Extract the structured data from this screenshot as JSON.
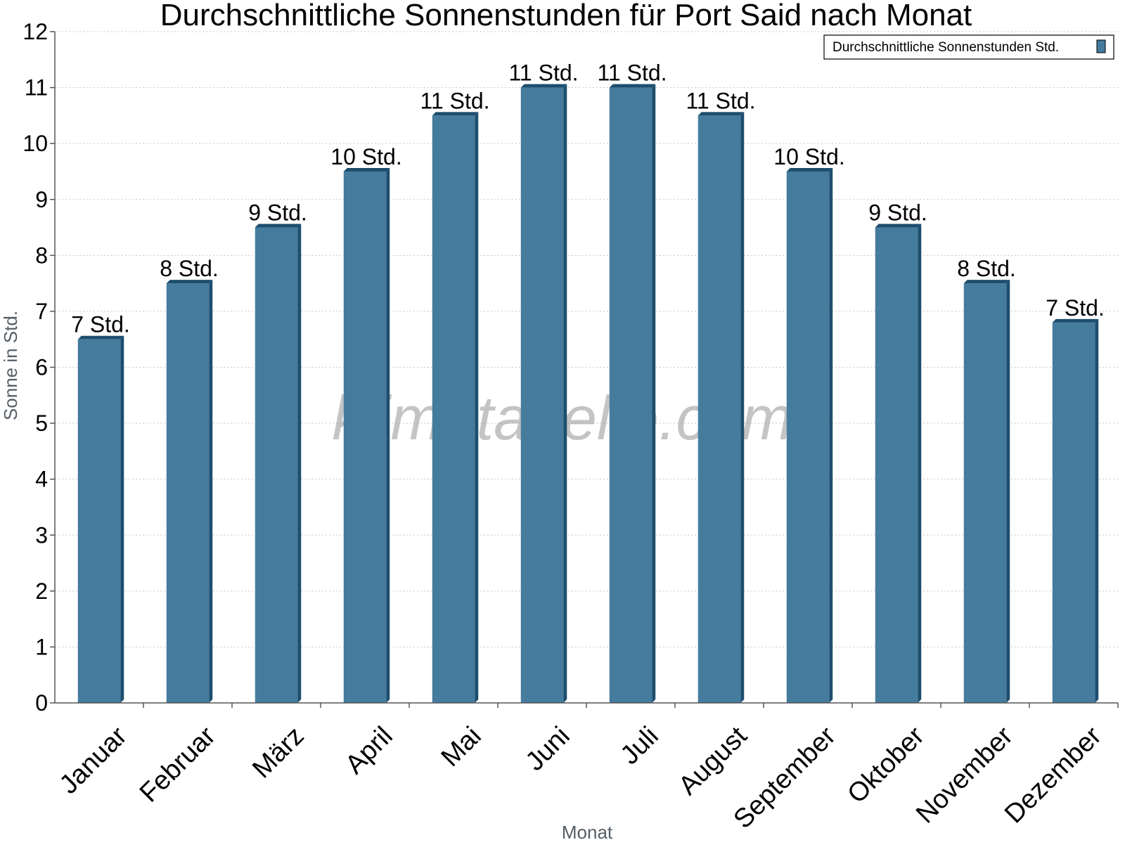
{
  "chart_data": {
    "type": "bar",
    "title": "Durchschnittliche Sonnenstunden für Port Said nach Monat",
    "xlabel": "Monat",
    "ylabel": "Sonne in Std.",
    "ylim": [
      0,
      12
    ],
    "yticks": [
      0,
      1,
      2,
      3,
      4,
      5,
      6,
      7,
      8,
      9,
      10,
      11,
      12
    ],
    "grid": true,
    "legend_position": "top-right",
    "categories": [
      "Januar",
      "Februar",
      "März",
      "April",
      "Mai",
      "Juni",
      "Juli",
      "August",
      "September",
      "Oktober",
      "November",
      "Dezember"
    ],
    "series": [
      {
        "name": "Durchschnittliche Sonnenstunden Std.",
        "values": [
          6.5,
          7.5,
          8.5,
          9.5,
          10.5,
          11,
          11,
          10.5,
          9.5,
          8.5,
          7.5,
          6.8
        ],
        "labels": [
          "7 Std.",
          "8 Std.",
          "9 Std.",
          "10 Std.",
          "11 Std.",
          "11 Std.",
          "11 Std.",
          "11 Std.",
          "10 Std.",
          "9 Std.",
          "8 Std.",
          "7 Std."
        ]
      }
    ],
    "colors": {
      "bar": "#457b9d",
      "bar_side": "#1d4e6e",
      "bar_top": "#1d4e6e",
      "grid": "#c8c8c8",
      "axis": "#555555"
    }
  },
  "watermark": "klimatabelle.com"
}
